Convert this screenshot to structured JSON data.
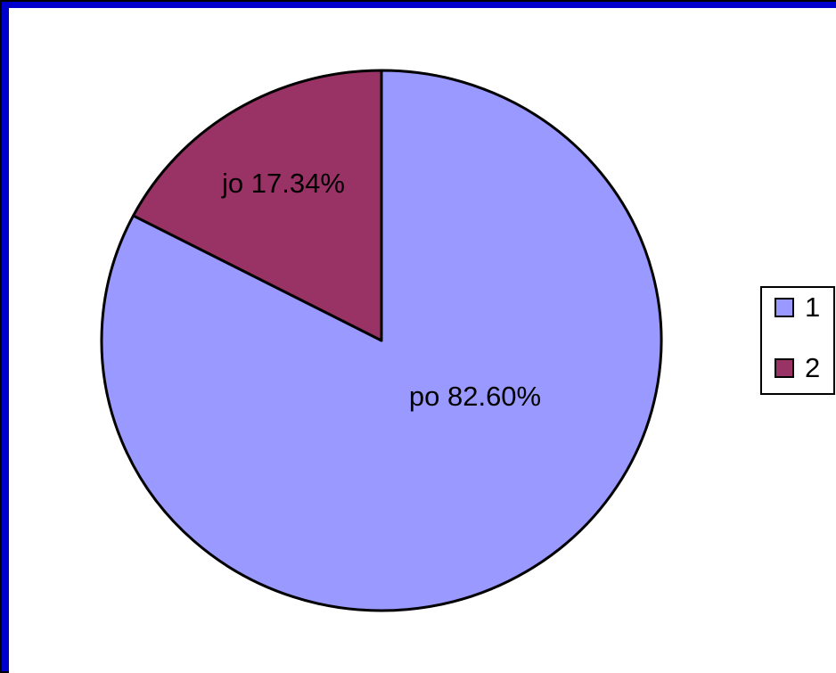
{
  "chart_data": {
    "type": "pie",
    "categories": [
      "1",
      "2"
    ],
    "values": [
      82.6,
      17.34
    ],
    "value_labels": [
      "po 82.60%",
      "jo 17.34%"
    ],
    "colors": [
      "#9999ff",
      "#993366"
    ],
    "legend": "right"
  }
}
